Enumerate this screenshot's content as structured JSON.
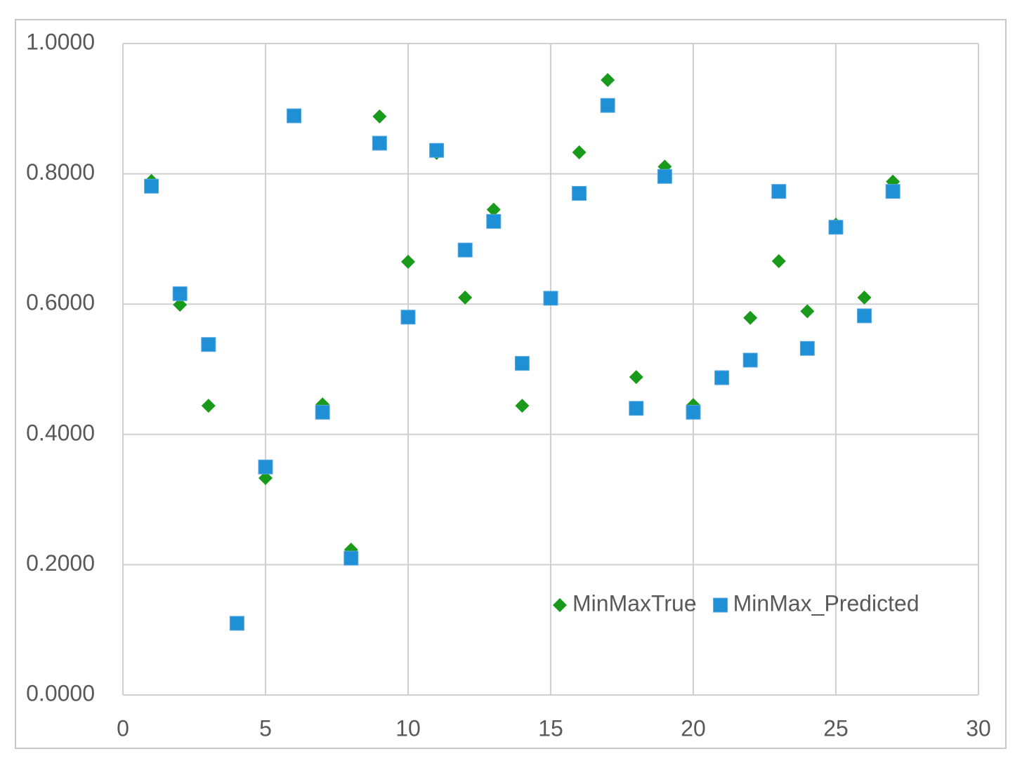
{
  "chart_data": {
    "type": "scatter",
    "x": [
      1,
      2,
      3,
      4,
      5,
      6,
      7,
      8,
      9,
      10,
      11,
      12,
      13,
      14,
      15,
      16,
      17,
      18,
      19,
      20,
      21,
      22,
      23,
      24,
      25,
      26,
      27
    ],
    "series": [
      {
        "name": "MinMaxTrue",
        "color": "#1a9a1a",
        "marker": "diamond",
        "values": [
          0.789,
          0.599,
          0.444,
          0.11,
          0.333,
          0.889,
          0.446,
          0.223,
          0.888,
          0.665,
          0.832,
          0.61,
          0.745,
          0.444,
          0.609,
          0.833,
          0.944,
          0.488,
          0.811,
          0.445,
          0.488,
          0.579,
          0.666,
          0.589,
          0.722,
          0.61,
          0.788
        ]
      },
      {
        "name": "MinMax_Predicted",
        "color": "#1f8fd6",
        "marker": "square",
        "values": [
          0.781,
          0.616,
          0.538,
          0.11,
          0.35,
          0.889,
          0.434,
          0.21,
          0.847,
          0.58,
          0.836,
          0.683,
          0.727,
          0.509,
          0.609,
          0.77,
          0.905,
          0.44,
          0.796,
          0.434,
          0.487,
          0.514,
          0.773,
          0.532,
          0.718,
          0.582,
          0.773
        ]
      }
    ],
    "xlim": [
      0,
      30
    ],
    "xticks": [
      0,
      5,
      10,
      15,
      20,
      25,
      30
    ],
    "ylim": [
      0,
      1
    ],
    "yticks": [
      {
        "value": 0,
        "label": "0.0000"
      },
      {
        "value": 0.2,
        "label": "0.2000"
      },
      {
        "value": 0.4,
        "label": "0.4000"
      },
      {
        "value": 0.6,
        "label": "0.6000"
      },
      {
        "value": 0.8,
        "label": "0.8000"
      },
      {
        "value": 1,
        "label": "1.0000"
      }
    ],
    "grid": true,
    "legend": "bottom-right"
  }
}
